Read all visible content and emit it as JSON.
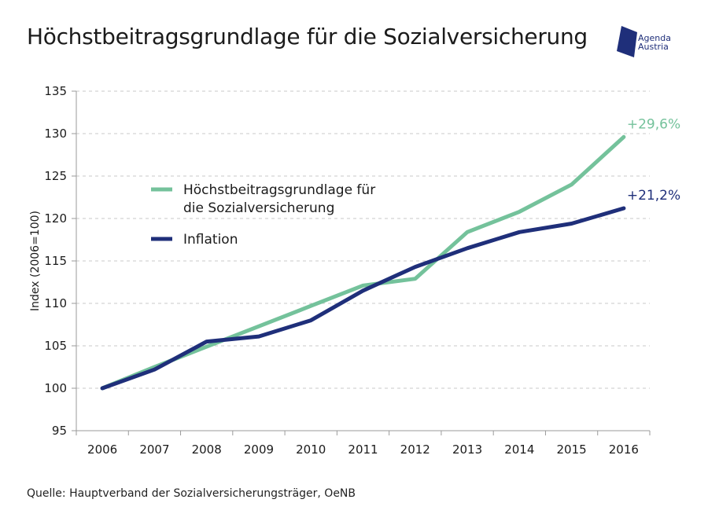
{
  "header": {
    "title": "Höchstbeitragsgrundlage für die Sozialversicherung"
  },
  "logo": {
    "line1": "Agenda",
    "line2": "Austria",
    "color": "#1f2f7a",
    "icon": "agenda-austria-logo-icon"
  },
  "footer": {
    "source": "Quelle: Hauptverband der Sozialversicherungsträger, OeNB"
  },
  "chart_data": {
    "type": "line",
    "title": "Höchstbeitragsgrundlage für die Sozialversicherung",
    "xlabel": "",
    "ylabel": "Index (2006=100)",
    "x": [
      "2006",
      "2007",
      "2008",
      "2009",
      "2010",
      "2011",
      "2012",
      "2013",
      "2014",
      "2015",
      "2016"
    ],
    "ylim": [
      95,
      135
    ],
    "yticks": [
      "95",
      "100",
      "105",
      "110",
      "115",
      "120",
      "125",
      "130",
      "135"
    ],
    "grid": "horizontal dashed",
    "legend_position": "upper-left inside plot",
    "series": [
      {
        "name": "Höchstbeitragsgrundlage für die Sozialversicherung",
        "legend_lines": [
          "Höchstbeitragsgrundlage für",
          "die Sozialversicherung"
        ],
        "color": "#74c29b",
        "values": [
          100.0,
          102.5,
          104.9,
          107.3,
          109.7,
          112.1,
          112.9,
          118.4,
          120.8,
          124.0,
          129.6
        ],
        "end_label": "+29,6%"
      },
      {
        "name": "Inflation",
        "legend_lines": [
          "Inflation"
        ],
        "color": "#1f2f7a",
        "values": [
          100.0,
          102.2,
          105.5,
          106.1,
          108.0,
          111.5,
          114.3,
          116.5,
          118.4,
          119.4,
          121.2
        ],
        "end_label": "+21,2%"
      }
    ]
  }
}
